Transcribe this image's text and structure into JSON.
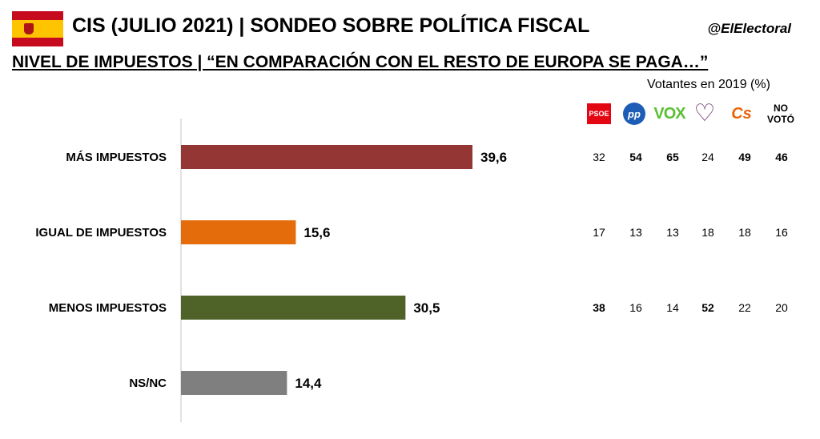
{
  "header": {
    "title": "CIS (JULIO 2021) | SONDEO SOBRE POLÍTICA FISCAL",
    "handle": "@ElElectoral",
    "subtitle": "NIVEL DE IMPUESTOS | “EN COMPARACIÓN CON EL RESTO DE EUROPA SE PAGA…”",
    "flag_icon": "spain-flag-icon"
  },
  "voters_table": {
    "title": "Votantes en 2019 (%)",
    "parties": [
      {
        "name": "PSOE",
        "logo_text": "PSOE",
        "color": "#e30613",
        "icon": "psoe-logo-icon"
      },
      {
        "name": "PP",
        "logo_text": "pp",
        "color": "#1d5db5",
        "icon": "pp-logo-icon"
      },
      {
        "name": "VOX",
        "logo_text": "VOX",
        "color": "#5bc035",
        "icon": "vox-logo-icon"
      },
      {
        "name": "Unidas Podemos",
        "logo_text": "",
        "color": "#6c2b6b",
        "icon": "heart-logo-icon"
      },
      {
        "name": "Cs",
        "logo_text": "Cs",
        "color": "#eb6109",
        "icon": "cs-logo-icon"
      },
      {
        "name": "NO VOTÓ",
        "logo_text": "NO VOTÓ",
        "color": "#000000",
        "icon": ""
      }
    ],
    "rows": [
      {
        "values": [
          "32",
          "54",
          "65",
          "24",
          "49",
          "46"
        ],
        "bold": [
          false,
          true,
          true,
          false,
          true,
          true
        ]
      },
      {
        "values": [
          "17",
          "13",
          "13",
          "18",
          "18",
          "16"
        ],
        "bold": [
          false,
          false,
          false,
          false,
          false,
          false
        ]
      },
      {
        "values": [
          "38",
          "16",
          "14",
          "52",
          "22",
          "20"
        ],
        "bold": [
          true,
          false,
          false,
          true,
          false,
          false
        ]
      },
      {
        "values": [],
        "bold": []
      }
    ]
  },
  "chart_data": {
    "type": "bar",
    "orientation": "horizontal",
    "categories": [
      "MÁS IMPUESTOS",
      "IGUAL DE IMPUESTOS",
      "MENOS IMPUESTOS",
      "NS/NC"
    ],
    "values": [
      39.6,
      15.6,
      30.5,
      14.4
    ],
    "value_labels": [
      "39,6",
      "15,6",
      "30,5",
      "14,4"
    ],
    "colors": [
      "#943634",
      "#e46c0a",
      "#4f6228",
      "#7f7f7f"
    ],
    "xlim": [
      0,
      50
    ],
    "grid": false,
    "title": "",
    "xlabel": "",
    "ylabel": ""
  }
}
